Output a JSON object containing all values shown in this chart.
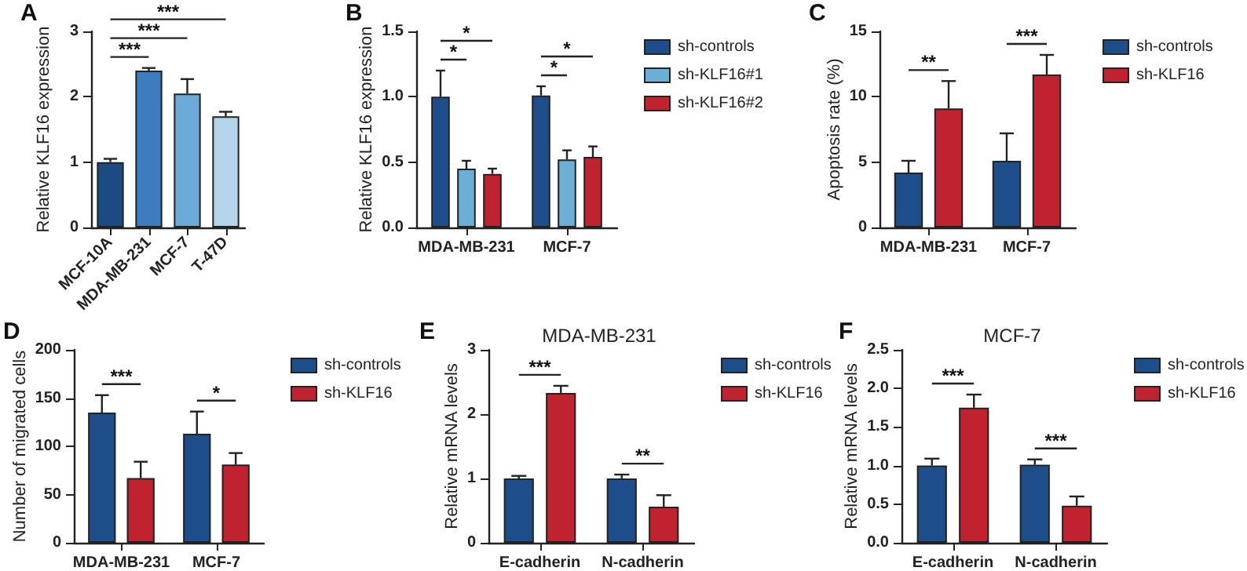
{
  "chart_data": [
    {
      "type": "bar",
      "annotations": [
        "A",
        "***",
        "***",
        "***"
      ],
      "ylabel": "Relative KLF16 expression",
      "categories": [
        "MCF-10A",
        "MDA-MB-231",
        "MCF-7",
        "T-47D"
      ],
      "values": [
        1.0,
        2.4,
        2.05,
        1.7
      ],
      "errors": [
        0.05,
        0.04,
        0.22,
        0.07
      ],
      "colors": [
        "#1c4a82",
        "#3b7dbf",
        "#6aabd8",
        "#b3d5ea"
      ],
      "ylim": [
        0,
        3
      ],
      "yticks": [
        0,
        1,
        2,
        3
      ]
    },
    {
      "type": "bar",
      "annotations": [
        "B",
        "*",
        "*",
        "*",
        "*"
      ],
      "ylabel": "Relative KLF16 expression",
      "categories": [
        "MDA-MB-231",
        "MCF-7"
      ],
      "series": [
        {
          "name": "sh-controls",
          "color": "#1d4e89",
          "values": [
            1.0,
            1.01
          ],
          "errors": [
            0.2,
            0.07
          ]
        },
        {
          "name": "sh-KLF16#1",
          "color": "#6baed6",
          "values": [
            0.45,
            0.52
          ],
          "errors": [
            0.06,
            0.07
          ]
        },
        {
          "name": "sh-KLF16#2",
          "color": "#c0232f",
          "values": [
            0.41,
            0.54
          ],
          "errors": [
            0.04,
            0.08
          ]
        }
      ],
      "ylim": [
        0,
        1.5
      ],
      "yticks": [
        {
          "value": 0,
          "label": "0.0"
        },
        {
          "value": 0.5,
          "label": "0.5"
        },
        {
          "value": 1,
          "label": "1.0"
        },
        {
          "value": 1.5,
          "label": "1.5"
        }
      ],
      "legend": "right"
    },
    {
      "type": "bar",
      "annotations": [
        "C",
        "**",
        "***"
      ],
      "ylabel": "Apoptosis rate (%)",
      "categories": [
        "MDA-MB-231",
        "MCF-7"
      ],
      "series": [
        {
          "name": "sh-controls",
          "color": "#1d4e89",
          "values": [
            4.2,
            5.1
          ],
          "errors": [
            0.9,
            2.1
          ]
        },
        {
          "name": "sh-KLF16",
          "color": "#c0232f",
          "values": [
            9.1,
            11.7
          ],
          "errors": [
            2.1,
            1.5
          ]
        }
      ],
      "ylim": [
        0,
        15
      ],
      "yticks": [
        0,
        5,
        10,
        15
      ],
      "legend": "right"
    },
    {
      "type": "bar",
      "annotations": [
        "D",
        "***",
        "*"
      ],
      "ylabel": "Number of migrated cells",
      "categories": [
        "MDA-MB-231",
        "MCF-7"
      ],
      "series": [
        {
          "name": "sh-controls",
          "color": "#1d4e89",
          "values": [
            135,
            113
          ],
          "errors": [
            18,
            23
          ]
        },
        {
          "name": "sh-KLF16",
          "color": "#c0232f",
          "values": [
            67,
            81
          ],
          "errors": [
            17,
            12
          ]
        }
      ],
      "ylim": [
        0,
        200
      ],
      "yticks": [
        0,
        50,
        100,
        150,
        200
      ],
      "legend": "right"
    },
    {
      "type": "bar",
      "title": "MDA-MB-231",
      "annotations": [
        "E",
        "***",
        "**"
      ],
      "ylabel": "Relative mRNA levels",
      "categories": [
        "E-cadherin",
        "N-cadherin"
      ],
      "series": [
        {
          "name": "sh-controls",
          "color": "#1d4e89",
          "values": [
            1.0,
            1.0
          ],
          "errors": [
            0.04,
            0.06
          ]
        },
        {
          "name": "sh-KLF16",
          "color": "#c0232f",
          "values": [
            2.33,
            0.56
          ],
          "errors": [
            0.11,
            0.18
          ]
        }
      ],
      "ylim": [
        0,
        3
      ],
      "yticks": [
        0,
        1,
        2,
        3
      ],
      "legend": "right"
    },
    {
      "type": "bar",
      "title": "MCF-7",
      "annotations": [
        "F",
        "***",
        "***"
      ],
      "ylabel": "Relative mRNA levels",
      "categories": [
        "E-cadherin",
        "N-cadherin"
      ],
      "series": [
        {
          "name": "sh-controls",
          "color": "#1d4e89",
          "values": [
            1.0,
            1.01
          ],
          "errors": [
            0.09,
            0.07
          ]
        },
        {
          "name": "sh-KLF16",
          "color": "#c0232f",
          "values": [
            1.75,
            0.48
          ],
          "errors": [
            0.17,
            0.12
          ]
        }
      ],
      "ylim": [
        0,
        2.5
      ],
      "yticks": [
        {
          "value": 0,
          "label": "0.0"
        },
        {
          "value": 0.5,
          "label": "0.5"
        },
        {
          "value": 1,
          "label": "1.0"
        },
        {
          "value": 1.5,
          "label": "1.5"
        },
        {
          "value": 2,
          "label": "2.0"
        },
        {
          "value": 2.5,
          "label": "2.5"
        }
      ],
      "legend": "right"
    }
  ]
}
